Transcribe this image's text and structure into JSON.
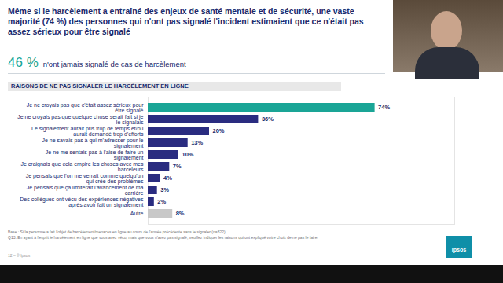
{
  "chart_data": {
    "type": "bar",
    "title": "Même si le harcèlement a entraîné des enjeux de santé mentale et de sécurité, une vaste majorité (74 %) des personnes qui n'ont pas signalé l'incident estimaient que ce n'était pas assez sérieux pour être signalé",
    "subtitle": "RAISONS DE NE PAS SIGNALER LE HARCÈLEMENT EN LIGNE",
    "categories": [
      "Je ne croyais pas que c'était assez sérieux pour être signalé",
      "Je ne croyais pas que quelque chose serait fait si je le signalais",
      "Le signalement aurait pris trop de temps et/ou aurait demandé trop d'efforts",
      "Je ne savais pas à qui m'adresser pour le signalement",
      "Je ne me sentais pas à l'aise de faire un signalement",
      "Je craignais que cela empire les choses avec mes harceleurs",
      "Je pensais que l'on me verrait comme quelqu'un qui crée des problèmes",
      "Je pensais que ça limiterait l'avancement de ma carrière",
      "Des collègues ont vécu des expériences négatives après avoir fait un signalement",
      "Autre"
    ],
    "values": [
      74,
      36,
      20,
      13,
      10,
      7,
      4,
      3,
      2,
      8
    ],
    "value_labels": [
      "74%",
      "36%",
      "20%",
      "13%",
      "10%",
      "7%",
      "4%",
      "3%",
      "2%",
      "8%"
    ],
    "colors": [
      "#1aa596",
      "#2a2c80",
      "#2a2c80",
      "#2a2c80",
      "#2a2c80",
      "#2a2c80",
      "#2a2c80",
      "#2a2c80",
      "#2a2c80",
      "#c8c8c8"
    ],
    "xlim": [
      0,
      100
    ],
    "orientation": "horizontal",
    "data_labels": true,
    "tick_labels": "y",
    "grid": false
  },
  "slide": {
    "kpi": "46 %",
    "kpi_text": "n'ont jamais signalé de cas de harcèlement",
    "notes": [
      "Base : Si la personne a fait l'objet de harcèlement/menaces en ligne au cours de l'année précédente sans le signaler (n=322)",
      "Q13. En ayant à l'esprit le harcèlement en ligne que vous avez vécu, mais que vous n'avez pas signalé, veuillez indiquer les raisons qui ont expliqué votre choix de ne pas le faire."
    ],
    "footer": "12 – © Ipsos",
    "logo": "Ipsos"
  }
}
